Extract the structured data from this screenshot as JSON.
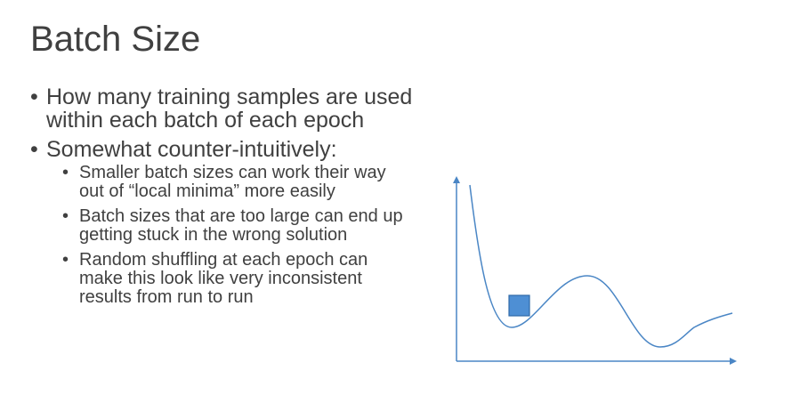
{
  "slide": {
    "title": "Batch Size",
    "bullet_char": "•",
    "bullets": [
      {
        "text": "How many training samples are used within each batch of each epoch"
      },
      {
        "text": "Somewhat counter-intuitively:"
      }
    ],
    "sub_bullets": [
      {
        "text": "Smaller batch sizes can work their way out of “local minima” more easily"
      },
      {
        "text": "Batch sizes that are too large can end up getting stuck in the wrong solution"
      },
      {
        "text": "Random shuffling at each epoch can make this look like very inconsistent results from run to run"
      }
    ]
  },
  "colors": {
    "text": "#404040",
    "accent": "#4a86c5",
    "marker_fill": "#4e8fd4",
    "marker_stroke": "#2f6aa8"
  }
}
